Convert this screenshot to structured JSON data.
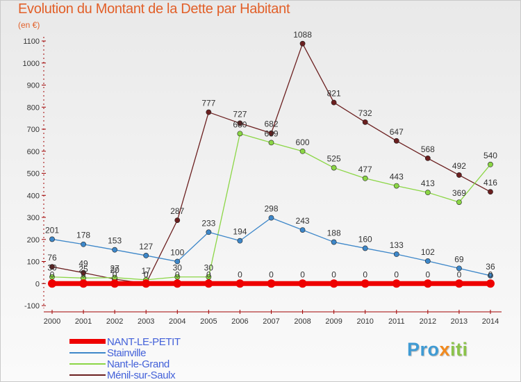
{
  "title": "Evolution du Montant de la Dette par Habitant",
  "unit": "(en €)",
  "logo": {
    "parts": [
      "Pro",
      "x",
      "iti"
    ],
    "colors": [
      "#3f9bd4",
      "#f28a1e",
      "#8bc34a"
    ]
  },
  "chart_data": {
    "type": "line",
    "title": "Evolution du Montant de la Dette par Habitant",
    "ylabel": "(en €)",
    "xlabel": "",
    "ylim": [
      -100,
      1100
    ],
    "yticks": [
      "-100",
      "0",
      "100",
      "200",
      "300",
      "400",
      "500",
      "600",
      "700",
      "800",
      "900",
      "1000",
      "1100"
    ],
    "x": [
      "2000",
      "2001",
      "2002",
      "2003",
      "2004",
      "2005",
      "2006",
      "2007",
      "2008",
      "2009",
      "2010",
      "2011",
      "2012",
      "2013",
      "2014"
    ],
    "series": [
      {
        "name": "NANT-LE-PETIT",
        "color": "#ee0000",
        "values": [
          0,
          0,
          0,
          0,
          0,
          0,
          0,
          0,
          0,
          0,
          0,
          0,
          0,
          0,
          0
        ],
        "labels": [
          "0",
          "0",
          "0",
          "0",
          "0",
          "0",
          "0",
          "0",
          "0",
          "0",
          "0",
          "0",
          "0",
          "0",
          "0"
        ]
      },
      {
        "name": "Stainville",
        "color": "#3d87c9",
        "values": [
          201,
          178,
          153,
          127,
          100,
          233,
          194,
          298,
          243,
          188,
          160,
          133,
          102,
          69,
          36
        ],
        "labels": [
          "201",
          "178",
          "153",
          "127",
          "100",
          "233",
          "194",
          "298",
          "243",
          "188",
          "160",
          "133",
          "102",
          "69",
          "36"
        ]
      },
      {
        "name": "Nant-le-Grand",
        "color": "#8bd645",
        "values": [
          30,
          25,
          27,
          17,
          30,
          30,
          680,
          639,
          600,
          525,
          477,
          443,
          413,
          369,
          540
        ],
        "labels": [
          "30",
          "25",
          "27",
          "17",
          "30",
          "30",
          "680",
          "639",
          "600",
          "525",
          "477",
          "443",
          "413",
          "369",
          "540"
        ]
      },
      {
        "name": "Ménil-sur-Saulx",
        "color": "#6b1f1f",
        "values": [
          76,
          49,
          20,
          0,
          287,
          777,
          727,
          682,
          1088,
          821,
          732,
          647,
          568,
          492,
          416
        ],
        "labels": [
          "76",
          "49",
          "20",
          "0",
          "287",
          "777",
          "727",
          "682",
          "1088",
          "821",
          "732",
          "647",
          "568",
          "492",
          "416"
        ]
      }
    ],
    "grid": false,
    "legend": "bottom-left"
  }
}
